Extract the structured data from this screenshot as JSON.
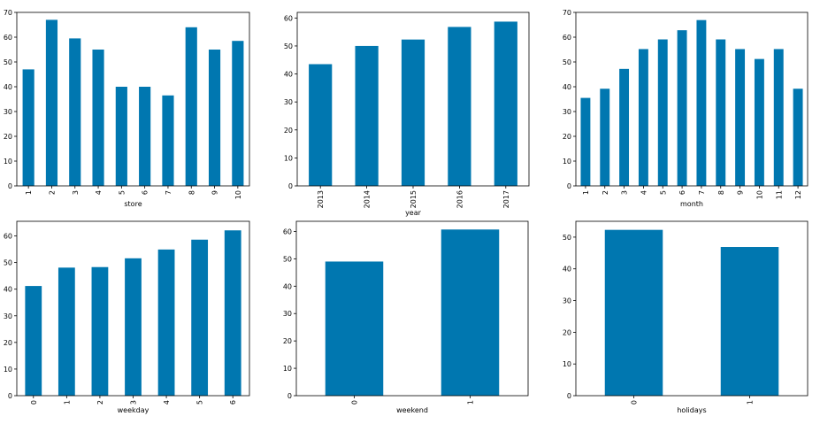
{
  "chart_data": [
    {
      "type": "bar",
      "xlabel": "store",
      "categories": [
        "1",
        "2",
        "3",
        "4",
        "5",
        "6",
        "7",
        "8",
        "9",
        "10"
      ],
      "values": [
        47,
        67,
        59.5,
        55,
        40,
        40,
        36.5,
        64,
        55,
        58.5
      ],
      "ylim": [
        0,
        70
      ],
      "yticks": [
        0,
        10,
        20,
        30,
        40,
        50,
        60,
        70
      ],
      "color": "#0077b0",
      "grid": false
    },
    {
      "type": "bar",
      "xlabel": "year",
      "categories": [
        "2013",
        "2014",
        "2015",
        "2016",
        "2017"
      ],
      "values": [
        43.5,
        50,
        52.3,
        56.8,
        58.7
      ],
      "ylim": [
        0,
        62
      ],
      "yticks": [
        0,
        10,
        20,
        30,
        40,
        50,
        60
      ],
      "color": "#0077b0",
      "grid": false
    },
    {
      "type": "bar",
      "xlabel": "month",
      "categories": [
        "1",
        "2",
        "3",
        "4",
        "5",
        "6",
        "7",
        "8",
        "9",
        "10",
        "11",
        "12"
      ],
      "values": [
        35.5,
        39.2,
        47.2,
        55.2,
        59.1,
        62.8,
        66.9,
        59.1,
        55.2,
        51.2,
        55.2,
        39.2
      ],
      "ylim": [
        0,
        70
      ],
      "yticks": [
        0,
        10,
        20,
        30,
        40,
        50,
        60,
        70
      ],
      "color": "#0077b0",
      "grid": false
    },
    {
      "type": "bar",
      "xlabel": "weekday",
      "categories": [
        "0",
        "1",
        "2",
        "3",
        "4",
        "5",
        "6"
      ],
      "values": [
        41.2,
        48.1,
        48.3,
        51.6,
        54.9,
        58.6,
        62.1
      ],
      "ylim": [
        0,
        65.5
      ],
      "yticks": [
        0,
        10,
        20,
        30,
        40,
        50,
        60
      ],
      "color": "#0077b0",
      "grid": false
    },
    {
      "type": "bar",
      "xlabel": "weekend",
      "categories": [
        "0",
        "1"
      ],
      "values": [
        49,
        60.7
      ],
      "ylim": [
        0,
        63.7
      ],
      "yticks": [
        0,
        10,
        20,
        30,
        40,
        50,
        60
      ],
      "color": "#0077b0",
      "grid": false
    },
    {
      "type": "bar",
      "xlabel": "holidays",
      "categories": [
        "0",
        "1"
      ],
      "values": [
        52.3,
        46.9
      ],
      "ylim": [
        0,
        55
      ],
      "yticks": [
        0,
        10,
        20,
        30,
        40,
        50
      ],
      "color": "#0077b0",
      "grid": false
    }
  ]
}
